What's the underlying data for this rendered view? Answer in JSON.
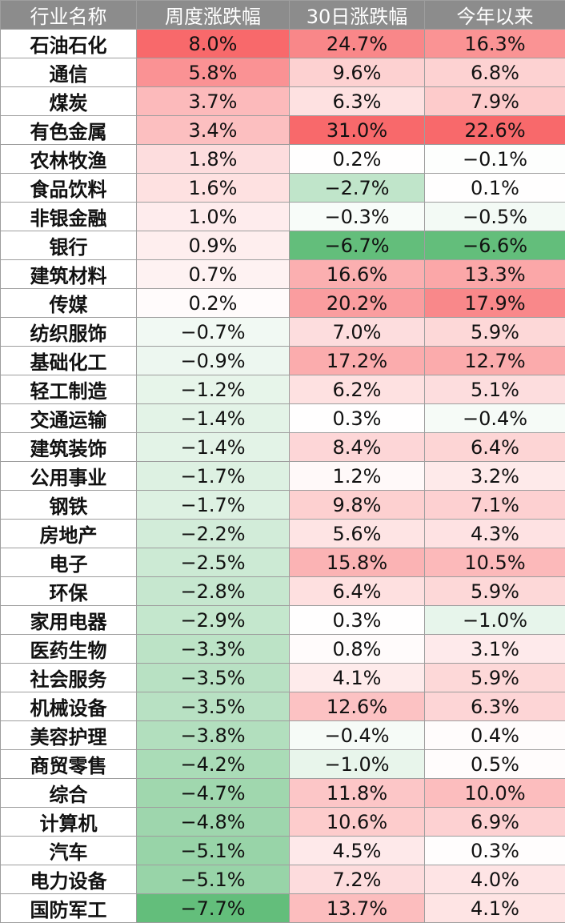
{
  "colors": {
    "header_bg": "#8c8c8c",
    "positive": "#f8696b",
    "negative": "#63be7b",
    "neutral": "#ffffff"
  },
  "chart_data": {
    "type": "table",
    "columns": [
      "行业名称",
      "周度涨跌幅",
      "30日涨跌幅",
      "今年以来"
    ],
    "rows": [
      {
        "industry": "石油石化",
        "weekly": "8.0%",
        "d30": "24.7%",
        "ytd": "16.3%"
      },
      {
        "industry": "通信",
        "weekly": "5.8%",
        "d30": "9.6%",
        "ytd": "6.8%"
      },
      {
        "industry": "煤炭",
        "weekly": "3.7%",
        "d30": "6.3%",
        "ytd": "7.9%"
      },
      {
        "industry": "有色金属",
        "weekly": "3.4%",
        "d30": "31.0%",
        "ytd": "22.6%"
      },
      {
        "industry": "农林牧渔",
        "weekly": "1.8%",
        "d30": "0.2%",
        "ytd": "−0.1%"
      },
      {
        "industry": "食品饮料",
        "weekly": "1.6%",
        "d30": "−2.7%",
        "ytd": "0.1%"
      },
      {
        "industry": "非银金融",
        "weekly": "1.0%",
        "d30": "−0.3%",
        "ytd": "−0.5%"
      },
      {
        "industry": "银行",
        "weekly": "0.9%",
        "d30": "−6.7%",
        "ytd": "−6.6%"
      },
      {
        "industry": "建筑材料",
        "weekly": "0.7%",
        "d30": "16.6%",
        "ytd": "13.3%"
      },
      {
        "industry": "传媒",
        "weekly": "0.2%",
        "d30": "20.2%",
        "ytd": "17.9%"
      },
      {
        "industry": "纺织服饰",
        "weekly": "−0.7%",
        "d30": "7.0%",
        "ytd": "5.9%"
      },
      {
        "industry": "基础化工",
        "weekly": "−0.9%",
        "d30": "17.2%",
        "ytd": "12.7%"
      },
      {
        "industry": "轻工制造",
        "weekly": "−1.2%",
        "d30": "6.2%",
        "ytd": "5.1%"
      },
      {
        "industry": "交通运输",
        "weekly": "−1.4%",
        "d30": "0.3%",
        "ytd": "−0.4%"
      },
      {
        "industry": "建筑装饰",
        "weekly": "−1.4%",
        "d30": "8.4%",
        "ytd": "6.4%"
      },
      {
        "industry": "公用事业",
        "weekly": "−1.7%",
        "d30": "1.2%",
        "ytd": "3.2%"
      },
      {
        "industry": "钢铁",
        "weekly": "−1.7%",
        "d30": "9.8%",
        "ytd": "7.1%"
      },
      {
        "industry": "房地产",
        "weekly": "−2.2%",
        "d30": "5.6%",
        "ytd": "4.3%"
      },
      {
        "industry": "电子",
        "weekly": "−2.5%",
        "d30": "15.8%",
        "ytd": "10.5%"
      },
      {
        "industry": "环保",
        "weekly": "−2.8%",
        "d30": "6.4%",
        "ytd": "5.9%"
      },
      {
        "industry": "家用电器",
        "weekly": "−2.9%",
        "d30": "0.3%",
        "ytd": "−1.0%"
      },
      {
        "industry": "医药生物",
        "weekly": "−3.3%",
        "d30": "0.8%",
        "ytd": "3.1%"
      },
      {
        "industry": "社会服务",
        "weekly": "−3.5%",
        "d30": "4.1%",
        "ytd": "5.9%"
      },
      {
        "industry": "机械设备",
        "weekly": "−3.5%",
        "d30": "12.6%",
        "ytd": "6.3%"
      },
      {
        "industry": "美容护理",
        "weekly": "−3.8%",
        "d30": "−0.4%",
        "ytd": "0.4%"
      },
      {
        "industry": "商贸零售",
        "weekly": "−4.2%",
        "d30": "−1.0%",
        "ytd": "0.5%"
      },
      {
        "industry": "综合",
        "weekly": "−4.7%",
        "d30": "11.8%",
        "ytd": "10.0%"
      },
      {
        "industry": "计算机",
        "weekly": "−4.8%",
        "d30": "10.6%",
        "ytd": "6.9%"
      },
      {
        "industry": "汽车",
        "weekly": "−5.1%",
        "d30": "4.5%",
        "ytd": "0.3%"
      },
      {
        "industry": "电力设备",
        "weekly": "−5.1%",
        "d30": "7.2%",
        "ytd": "4.0%"
      },
      {
        "industry": "国防军工",
        "weekly": "−7.7%",
        "d30": "13.7%",
        "ytd": "4.1%"
      }
    ]
  }
}
